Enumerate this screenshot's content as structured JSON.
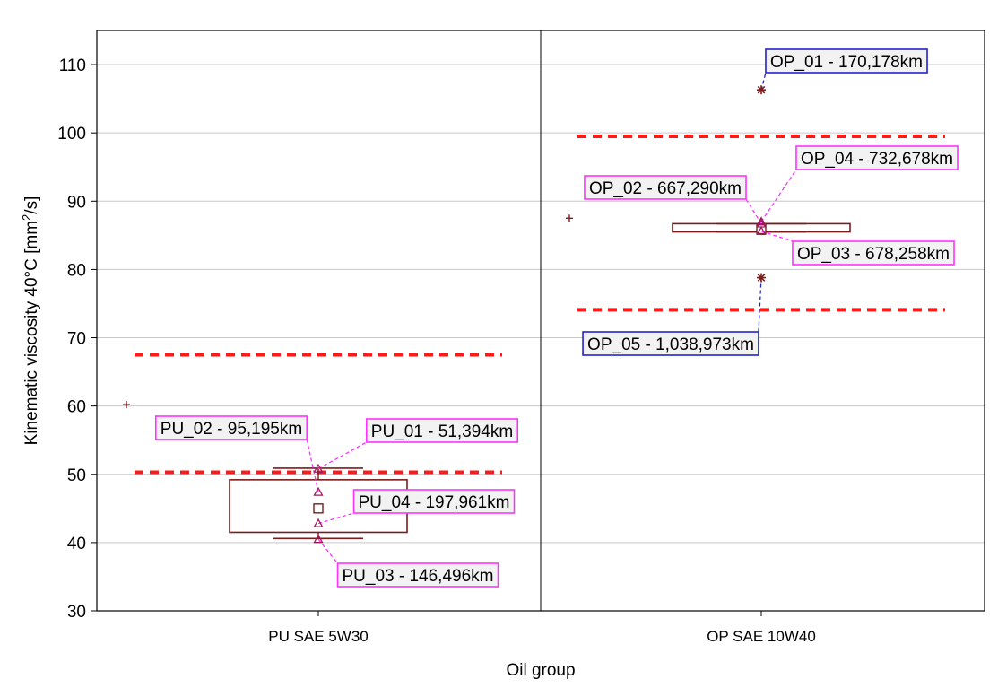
{
  "chart_data": {
    "type": "box",
    "title": "",
    "xlabel": "Oil group",
    "ylabel_main": "Kinematic viscosity 40°C [mm",
    "ylabel_sup": "2",
    "ylabel_end": "/s]",
    "ylim": [
      30,
      115
    ],
    "yticks": [
      30,
      40,
      50,
      60,
      70,
      80,
      90,
      100,
      110
    ],
    "grid": true,
    "categories": [
      "PU SAE 5W30",
      "OP SAE 10W40"
    ],
    "groups": [
      {
        "name": "PU SAE 5W30",
        "whisker_low": 40.6,
        "q1": 41.5,
        "median": 45.0,
        "q3": 49.2,
        "whisker_high": 50.9,
        "mean_marker": 60.2,
        "limit_lines": [
          67.5,
          50.3
        ],
        "points": [
          {
            "label": "PU_01 - 51,394km",
            "y": 50.8,
            "marker": "triangle",
            "color": "#ff33ff"
          },
          {
            "label": "PU_02 - 95,195km",
            "y": 47.4,
            "marker": "triangle",
            "color": "#ff33ff"
          },
          {
            "label": "PU_03 - 146,496km",
            "y": 40.5,
            "marker": "triangle",
            "color": "#ff33ff"
          },
          {
            "label": "PU_04 - 197,961km",
            "y": 42.8,
            "marker": "triangle",
            "color": "#ff33ff"
          }
        ]
      },
      {
        "name": "OP SAE 10W40",
        "whisker_low": 85.5,
        "q1": 85.5,
        "median": 85.9,
        "q3": 86.7,
        "whisker_high": 86.7,
        "mean_marker": 87.5,
        "limit_lines": [
          99.5,
          74.1
        ],
        "points": [
          {
            "label": "OP_01 - 170,178km",
            "y": 106.3,
            "marker": "star",
            "color": "#2222cc"
          },
          {
            "label": "OP_02 - 667,290km",
            "y": 86.7,
            "marker": "triangle",
            "color": "#ff33ff"
          },
          {
            "label": "OP_03 - 678,258km",
            "y": 85.6,
            "marker": "triangle",
            "color": "#ff33ff"
          },
          {
            "label": "OP_04 - 732,678km",
            "y": 87.0,
            "marker": "triangle",
            "color": "#ff33ff"
          },
          {
            "label": "OP_05 - 1,038,973km",
            "y": 78.8,
            "marker": "star",
            "color": "#2222cc"
          }
        ]
      }
    ],
    "colors": {
      "box": "#7b1c1c",
      "limit": "#ff1a1a",
      "grid": "#c8c8c8",
      "pink": "#ff33ff",
      "blue": "#2222cc"
    }
  }
}
